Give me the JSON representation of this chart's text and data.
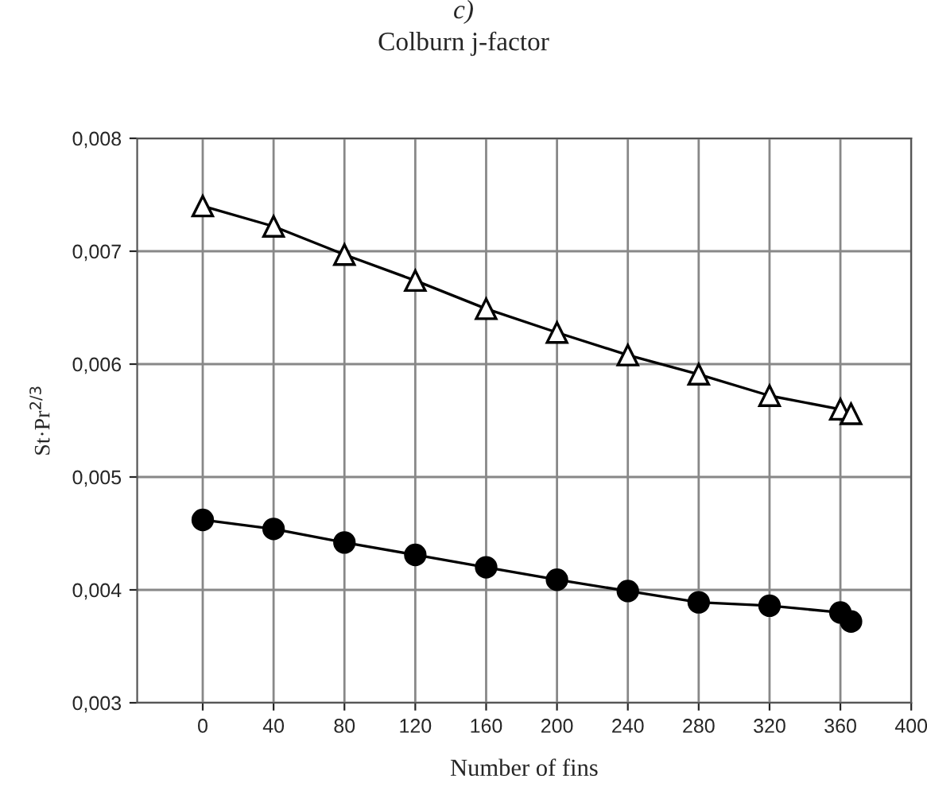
{
  "chart_data": {
    "type": "line",
    "title": "Colburn j-factor",
    "xlabel": "Number of fins",
    "ylabel": "St·Pr$^{2/3}$",
    "annotations": [
      "c)"
    ],
    "series": [
      {
        "color": "#000000",
        "marker": "triangle",
        "x": [
          0,
          40,
          80,
          120,
          160,
          200,
          240,
          280,
          320,
          360,
          366
        ],
        "values": [
          0.0074,
          0.00722,
          0.00697,
          0.00674,
          0.00649,
          0.00628,
          0.00608,
          0.00591,
          0.00572,
          0.0056,
          0.00556
        ]
      },
      {
        "color": "#000000",
        "marker": "circle",
        "x": [
          0,
          40,
          80,
          120,
          160,
          200,
          240,
          280,
          320,
          360,
          366
        ],
        "values": [
          0.00462,
          0.00454,
          0.00442,
          0.00431,
          0.0042,
          0.00409,
          0.00399,
          0.00389,
          0.00386,
          0.0038,
          0.00372
        ]
      }
    ],
    "xlim": [
      -37,
      400
    ],
    "xticks": [
      0,
      40,
      80,
      120,
      160,
      200,
      240,
      280,
      320,
      360,
      400
    ],
    "ylim": [
      0.003,
      0.008
    ],
    "yticks": [
      {
        "value": 0.003,
        "label": "0,003"
      },
      {
        "value": 0.004,
        "label": "0,004"
      },
      {
        "value": 0.005,
        "label": "0,005"
      },
      {
        "value": 0.006,
        "label": "0,006"
      },
      {
        "value": 0.007,
        "label": "0,007"
      },
      {
        "value": 0.008,
        "label": "0,008"
      }
    ],
    "grid": true,
    "line_style": "solid"
  }
}
